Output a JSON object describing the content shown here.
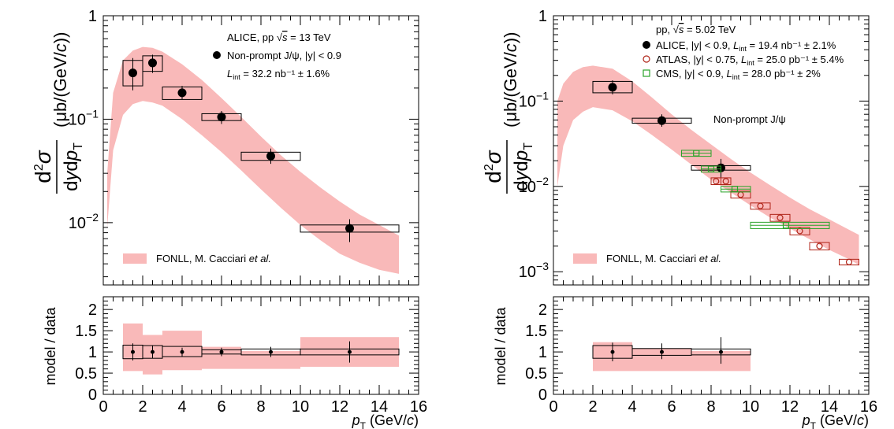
{
  "chart_data": [
    {
      "type": "scatter",
      "ylabel": "d²σ / dydp_T (μb/(GeV/c))",
      "yscale": "log",
      "ylim": [
        0.0025,
        1
      ],
      "xlim": [
        0,
        16
      ],
      "annotation": [
        "ALICE, pp √s = 13 TeV",
        "Non-prompt J/ψ, |y| < 0.9",
        "L_int = 32.2 nb⁻¹ ± 1.6%"
      ],
      "legend": {
        "fonll": "FONLL, M. Cacciari et al."
      },
      "fonll_band": {
        "x": [
          0.2,
          0.5,
          1.0,
          1.5,
          2.0,
          2.5,
          3.0,
          4.0,
          5.0,
          6.0,
          7.0,
          8.0,
          9.0,
          10.0,
          11.0,
          12.0,
          13.0,
          14.0,
          15.0
        ],
        "low": [
          0.009,
          0.05,
          0.11,
          0.14,
          0.15,
          0.145,
          0.135,
          0.1,
          0.07,
          0.048,
          0.032,
          0.021,
          0.014,
          0.0095,
          0.0068,
          0.005,
          0.0041,
          0.0035,
          0.0032
        ],
        "high": [
          0.03,
          0.18,
          0.37,
          0.46,
          0.5,
          0.49,
          0.45,
          0.34,
          0.24,
          0.16,
          0.105,
          0.068,
          0.045,
          0.031,
          0.022,
          0.016,
          0.012,
          0.0095,
          0.0075
        ]
      },
      "series": [
        {
          "name": "ALICE",
          "points": [
            {
              "x": 1.5,
              "xlo": 1,
              "xhi": 2,
              "y": 0.28,
              "ylo": 0.19,
              "yhi": 0.39,
              "syslo": 0.21,
              "syshi": 0.37
            },
            {
              "x": 2.5,
              "xlo": 2,
              "xhi": 3,
              "y": 0.35,
              "ylo": 0.28,
              "yhi": 0.42,
              "syslo": 0.29,
              "syshi": 0.41
            },
            {
              "x": 4,
              "xlo": 3,
              "xhi": 5,
              "y": 0.18,
              "ylo": 0.155,
              "yhi": 0.21,
              "syslo": 0.155,
              "syshi": 0.205
            },
            {
              "x": 6,
              "xlo": 5,
              "xhi": 7,
              "y": 0.105,
              "ylo": 0.09,
              "yhi": 0.12,
              "syslo": 0.097,
              "syshi": 0.113
            },
            {
              "x": 8.5,
              "xlo": 7,
              "xhi": 10,
              "y": 0.044,
              "ylo": 0.037,
              "yhi": 0.052,
              "syslo": 0.04,
              "syshi": 0.048
            },
            {
              "x": 12.5,
              "xlo": 10,
              "xhi": 15,
              "y": 0.0088,
              "ylo": 0.0065,
              "yhi": 0.0108,
              "syslo": 0.0081,
              "syshi": 0.0095
            }
          ]
        }
      ],
      "ratio": {
        "ylabel": "model / data",
        "ylim": [
          0,
          2.3
        ],
        "yticks": [
          "0",
          "0.5",
          "1",
          "1.5",
          "2"
        ],
        "bins": [
          {
            "x": 1.5,
            "xlo": 1,
            "xhi": 2,
            "y": 1.0,
            "ylo": 0.8,
            "yhi": 1.2,
            "syslo": 0.84,
            "syshi": 1.16,
            "bandlo": 0.55,
            "bandhi": 1.67
          },
          {
            "x": 2.5,
            "xlo": 2,
            "xhi": 3,
            "y": 1.0,
            "ylo": 0.85,
            "yhi": 1.15,
            "syslo": 0.85,
            "syshi": 1.15,
            "bandlo": 0.47,
            "bandhi": 1.4
          },
          {
            "x": 4,
            "xlo": 3,
            "xhi": 5,
            "y": 1.0,
            "ylo": 0.9,
            "yhi": 1.1,
            "syslo": 0.89,
            "syshi": 1.13,
            "bandlo": 0.57,
            "bandhi": 1.5
          },
          {
            "x": 6,
            "xlo": 5,
            "xhi": 7,
            "y": 1.0,
            "ylo": 0.9,
            "yhi": 1.1,
            "syslo": 0.95,
            "syshi": 1.05,
            "bandlo": 0.6,
            "bandhi": 1.12
          },
          {
            "x": 8.5,
            "xlo": 7,
            "xhi": 10,
            "y": 1.0,
            "ylo": 0.88,
            "yhi": 1.12,
            "syslo": 0.93,
            "syshi": 1.07,
            "bandlo": 0.6,
            "bandhi": 1.02
          },
          {
            "x": 12.5,
            "xlo": 10,
            "xhi": 15,
            "y": 1.0,
            "ylo": 0.75,
            "yhi": 1.25,
            "syslo": 0.93,
            "syshi": 1.07,
            "bandlo": 0.65,
            "bandhi": 1.35
          }
        ]
      }
    },
    {
      "type": "scatter",
      "ylabel": "d²σ / dydp_T (μb/(GeV/c))",
      "yscale": "log",
      "ylim": [
        0.0007,
        1
      ],
      "xlim": [
        0,
        16
      ],
      "annotation": [
        "Non-prompt J/ψ"
      ],
      "legend": {
        "title": "pp, √s = 5.02 TeV",
        "fonll": "FONLL, M. Cacciari et al."
      },
      "fonll_band": {
        "x": [
          0.2,
          0.5,
          1.0,
          1.5,
          2.0,
          3.0,
          4.0,
          5.0,
          6.0,
          7.0,
          8.0,
          9.0,
          10.0,
          11.0,
          12.0,
          13.0,
          14.0,
          15.0,
          15.5
        ],
        "low": [
          0.01,
          0.03,
          0.06,
          0.075,
          0.085,
          0.078,
          0.058,
          0.04,
          0.027,
          0.018,
          0.012,
          0.0085,
          0.006,
          0.0043,
          0.0032,
          0.0024,
          0.0018,
          0.0014,
          0.0012
        ],
        "high": [
          0.1,
          0.16,
          0.22,
          0.25,
          0.26,
          0.24,
          0.17,
          0.11,
          0.07,
          0.046,
          0.031,
          0.021,
          0.0145,
          0.0103,
          0.0074,
          0.0054,
          0.0041,
          0.0031,
          0.0027
        ]
      },
      "series": [
        {
          "name": "ALICE",
          "label_main": "ALICE, |y| < 0.9, ",
          "label_lumi": "L",
          "label_sub": "int",
          "label_rest": " = 19.4 nb⁻¹ ± 2.1%",
          "color": "#000000",
          "points": [
            {
              "x": 3,
              "xlo": 2,
              "xhi": 4,
              "y": 0.145,
              "ylo": 0.12,
              "yhi": 0.175,
              "syslo": 0.125,
              "syshi": 0.17
            },
            {
              "x": 5.5,
              "xlo": 4,
              "xhi": 7,
              "y": 0.059,
              "ylo": 0.05,
              "yhi": 0.07,
              "syslo": 0.055,
              "syshi": 0.063
            },
            {
              "x": 8.5,
              "xlo": 7,
              "xhi": 10,
              "y": 0.0165,
              "ylo": 0.0125,
              "yhi": 0.021,
              "syslo": 0.0155,
              "syshi": 0.0175
            }
          ]
        },
        {
          "name": "ATLAS",
          "label_main": "ATLAS, |y| < 0.75, ",
          "label_lumi": "L",
          "label_sub": "int",
          "label_rest": " = 25.0 pb⁻¹ ± 5.4%",
          "color": "#b02418",
          "points": [
            {
              "x": 8.25,
              "xlo": 8,
              "xhi": 8.5,
              "y": 0.0115,
              "syslo": 0.0105,
              "syshi": 0.0126
            },
            {
              "x": 8.75,
              "xlo": 8.5,
              "xhi": 9,
              "y": 0.0115,
              "syslo": 0.0105,
              "syshi": 0.0126
            },
            {
              "x": 9.5,
              "xlo": 9,
              "xhi": 10,
              "y": 0.008,
              "syslo": 0.0073,
              "syshi": 0.0088
            },
            {
              "x": 10.5,
              "xlo": 10,
              "xhi": 11,
              "y": 0.0059,
              "syslo": 0.0054,
              "syshi": 0.0064
            },
            {
              "x": 11.5,
              "xlo": 11,
              "xhi": 12,
              "y": 0.0043,
              "syslo": 0.0039,
              "syshi": 0.0047
            },
            {
              "x": 12.5,
              "xlo": 12,
              "xhi": 13,
              "y": 0.003,
              "syslo": 0.0027,
              "syshi": 0.0033
            },
            {
              "x": 13.5,
              "xlo": 13,
              "xhi": 14,
              "y": 0.002,
              "syslo": 0.0018,
              "syshi": 0.0022
            },
            {
              "x": 15,
              "xlo": 14.5,
              "xhi": 15.5,
              "y": 0.0013,
              "syslo": 0.0012,
              "syshi": 0.0014
            }
          ]
        },
        {
          "name": "CMS",
          "label_main": "CMS, |y| < 0.9, ",
          "label_lumi": "L",
          "label_sub": "int",
          "label_rest": " = 28.0 pb⁻¹ ± 2%",
          "color": "#28a428",
          "points": [
            {
              "x": 7.25,
              "xlo": 6.5,
              "xhi": 8,
              "y": 0.0245,
              "syslo": 0.0225,
              "syshi": 0.0265
            },
            {
              "x": 8.0,
              "xlo": 7.5,
              "xhi": 8.5,
              "y": 0.016,
              "syslo": 0.0147,
              "syshi": 0.0173
            },
            {
              "x": 9.2,
              "xlo": 8.5,
              "xhi": 10,
              "y": 0.0093,
              "syslo": 0.0086,
              "syshi": 0.01
            },
            {
              "x": 11.8,
              "xlo": 10,
              "xhi": 14,
              "y": 0.0035,
              "syslo": 0.0032,
              "syshi": 0.0038
            }
          ]
        }
      ],
      "ratio": {
        "ylabel": "model / data",
        "ylim": [
          0,
          2.3
        ],
        "yticks": [
          "0",
          "0.5",
          "1",
          "1.5",
          "2"
        ],
        "bins": [
          {
            "x": 3,
            "xlo": 2,
            "xhi": 4,
            "y": 1.0,
            "ylo": 0.78,
            "yhi": 1.22,
            "syslo": 0.85,
            "syshi": 1.15,
            "bandlo": 0.55,
            "bandhi": 1.23
          },
          {
            "x": 5.5,
            "xlo": 4,
            "xhi": 7,
            "y": 1.0,
            "ylo": 0.83,
            "yhi": 1.2,
            "syslo": 0.92,
            "syshi": 1.08,
            "bandlo": 0.55,
            "bandhi": 1.08
          },
          {
            "x": 8.5,
            "xlo": 7,
            "xhi": 10,
            "y": 1.0,
            "ylo": 0.72,
            "yhi": 1.35,
            "syslo": 0.93,
            "syshi": 1.07,
            "bandlo": 0.55,
            "bandhi": 1.02
          }
        ]
      }
    }
  ],
  "axis": {
    "xlabel_var": "p",
    "xlabel_sub": "T",
    "xlabel_unit_open": " (GeV/",
    "xlabel_unit_c": "c",
    "xlabel_unit_close": ")",
    "xticks": [
      "0",
      "2",
      "4",
      "6",
      "8",
      "10",
      "12",
      "14",
      "16"
    ],
    "ytick_one": "1",
    "ytick_base": "10",
    "ratio_ylabel": "model / data"
  },
  "left": {
    "ann_line1_pre": "ALICE, pp ",
    "ann_line1_s": "s",
    "ann_line1_post": " = 13 TeV",
    "ann_line2": "Non-prompt J/ψ, |y| < 0.9",
    "ann_line3_L": "L",
    "ann_line3_sub": "int",
    "ann_line3_post": " = 32.2 nb⁻¹ ± 1.6%",
    "legend_fonll_pre": "FONLL, M. Cacciari ",
    "legend_fonll_it": "et al."
  },
  "right": {
    "legend_title_pre": "pp, ",
    "legend_title_s": "s",
    "legend_title_post": " = 5.02 TeV",
    "annotation": "Non-prompt J/ψ",
    "legend_fonll_pre": "FONLL, M. Cacciari ",
    "legend_fonll_it": "et al."
  },
  "colors": {
    "band": "#f9b9b9",
    "atlas": "#b02418",
    "cms": "#28a428"
  }
}
